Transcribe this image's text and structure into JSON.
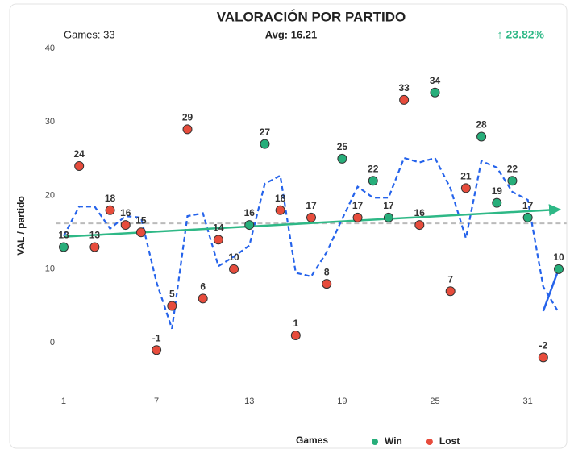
{
  "chart_data": {
    "type": "scatter",
    "title": "VALORACIÓN POR PARTIDO",
    "games_label": "Games: 33",
    "avg_label": "Avg: 16.21",
    "change_label": "↑ 23.82%",
    "x_label": "Games",
    "y_label": "VAL / partido",
    "xlim": [
      0.5,
      33.5
    ],
    "ylim": [
      -7,
      40
    ],
    "xticks": [
      1,
      7,
      13,
      19,
      25,
      31
    ],
    "yticks": [
      0,
      10,
      20,
      30,
      40
    ],
    "series": [
      {
        "name": "Win",
        "color": "#27ae7a",
        "x": [
          1,
          13,
          14,
          19,
          21,
          22,
          25,
          28,
          29,
          30,
          31,
          33
        ],
        "values": [
          13,
          16,
          27,
          25,
          22,
          17,
          34,
          28,
          19,
          22,
          17,
          10
        ]
      },
      {
        "name": "Lost",
        "color": "#e74c3c",
        "x": [
          2,
          3,
          4,
          5,
          6,
          7,
          8,
          9,
          10,
          11,
          12,
          15,
          16,
          17,
          18,
          20,
          23,
          24,
          26,
          27,
          32
        ],
        "values": [
          24,
          13,
          18,
          16,
          15,
          -1,
          5,
          29,
          6,
          14,
          10,
          18,
          1,
          17,
          8,
          17,
          33,
          16,
          7,
          21,
          -2
        ]
      }
    ],
    "moving_average": {
      "color": "#2563eb",
      "x": [
        1,
        2,
        3,
        4,
        5,
        6,
        7,
        8,
        9,
        10,
        11,
        12,
        13,
        14,
        15,
        16,
        17,
        18,
        19,
        20,
        21,
        22,
        23,
        24,
        25,
        26,
        27,
        28,
        29,
        30,
        31,
        32,
        33
      ],
      "values": [
        14.5,
        18.5,
        18.5,
        15.5,
        17.2,
        17,
        8.2,
        1.9,
        17.2,
        17.6,
        10.4,
        11.7,
        13.2,
        21.6,
        22.7,
        9.5,
        9,
        12.3,
        16.8,
        21.2,
        19.7,
        19.7,
        25.1,
        24.5,
        25.1,
        21,
        14.2,
        24.7,
        23.8,
        20.5,
        19.4,
        7.6,
        4.1
      ]
    },
    "trend": {
      "color": "#2eb886",
      "x": [
        1,
        33
      ],
      "values": [
        14.4,
        18.1
      ]
    },
    "recent": {
      "color": "#2563eb",
      "x": [
        32,
        33
      ],
      "values": [
        4.3,
        10
      ]
    },
    "avg": 16.21,
    "avg_color": "#bbbbbb"
  }
}
